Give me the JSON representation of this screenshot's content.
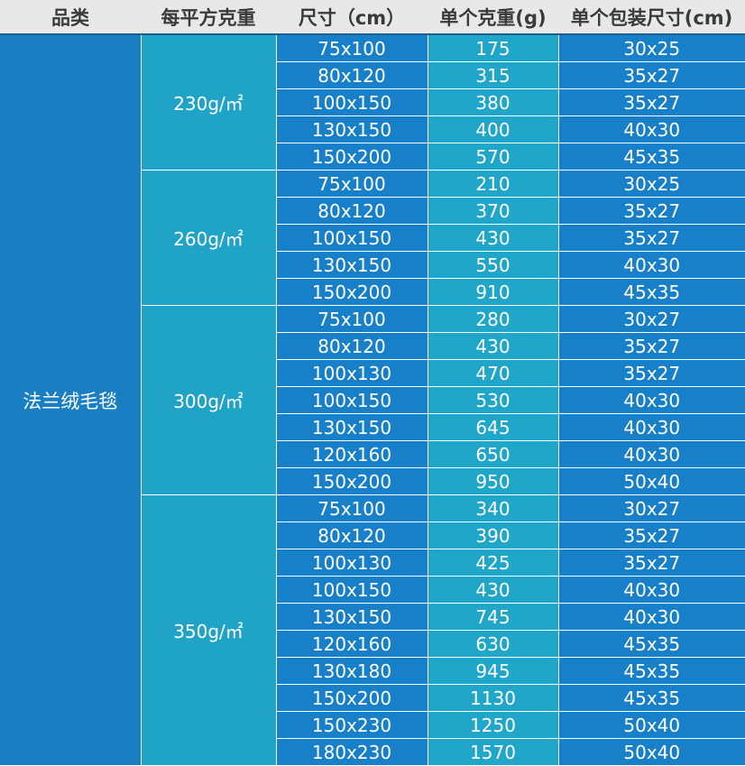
{
  "headers": [
    "品类",
    "每平方克重",
    "尺寸（cm）",
    "单个克重(g)",
    "单个包装尺寸(cm)"
  ],
  "category": "法兰绒毛毯",
  "groups": [
    {
      "gsm": "230g/㎡",
      "rows": [
        {
          "size": "75x100",
          "weight": "175",
          "pack": "30x25"
        },
        {
          "size": "80x120",
          "weight": "315",
          "pack": "35x27"
        },
        {
          "size": "100x150",
          "weight": "380",
          "pack": "35x27"
        },
        {
          "size": "130x150",
          "weight": "400",
          "pack": "40x30"
        },
        {
          "size": "150x200",
          "weight": "570",
          "pack": "45x35"
        }
      ]
    },
    {
      "gsm": "260g/㎡",
      "rows": [
        {
          "size": "75x100",
          "weight": "210",
          "pack": "30x25"
        },
        {
          "size": "80x120",
          "weight": "370",
          "pack": "35x27"
        },
        {
          "size": "100x150",
          "weight": "430",
          "pack": "35x27"
        },
        {
          "size": "130x150",
          "weight": "550",
          "pack": "40x30"
        },
        {
          "size": "150x200",
          "weight": "910",
          "pack": "45x35"
        }
      ]
    },
    {
      "gsm": "300g/㎡",
      "rows": [
        {
          "size": "75x100",
          "weight": "280",
          "pack": "30x27"
        },
        {
          "size": "80x120",
          "weight": "430",
          "pack": "35x27"
        },
        {
          "size": "100x130",
          "weight": "470",
          "pack": "35x27"
        },
        {
          "size": "100x150",
          "weight": "530",
          "pack": "40x30"
        },
        {
          "size": "130x150",
          "weight": "645",
          "pack": "40x30"
        },
        {
          "size": "120x160",
          "weight": "650",
          "pack": "40x30"
        },
        {
          "size": "150x200",
          "weight": "950",
          "pack": "50x40"
        }
      ]
    },
    {
      "gsm": "350g/㎡",
      "rows": [
        {
          "size": "75x100",
          "weight": "340",
          "pack": "30x27"
        },
        {
          "size": "80x120",
          "weight": "390",
          "pack": "35x27"
        },
        {
          "size": "100x130",
          "weight": "425",
          "pack": "35x27"
        },
        {
          "size": "100x150",
          "weight": "430",
          "pack": "40x30"
        },
        {
          "size": "130x150",
          "weight": "745",
          "pack": "40x30"
        },
        {
          "size": "120x160",
          "weight": "630",
          "pack": "45x35"
        },
        {
          "size": "130x180",
          "weight": "945",
          "pack": "45x35"
        },
        {
          "size": "150x200",
          "weight": "1130",
          "pack": "45x35"
        },
        {
          "size": "150x230",
          "weight": "1250",
          "pack": "50x40"
        },
        {
          "size": "180x230",
          "weight": "1570",
          "pack": "50x40"
        }
      ]
    }
  ]
}
